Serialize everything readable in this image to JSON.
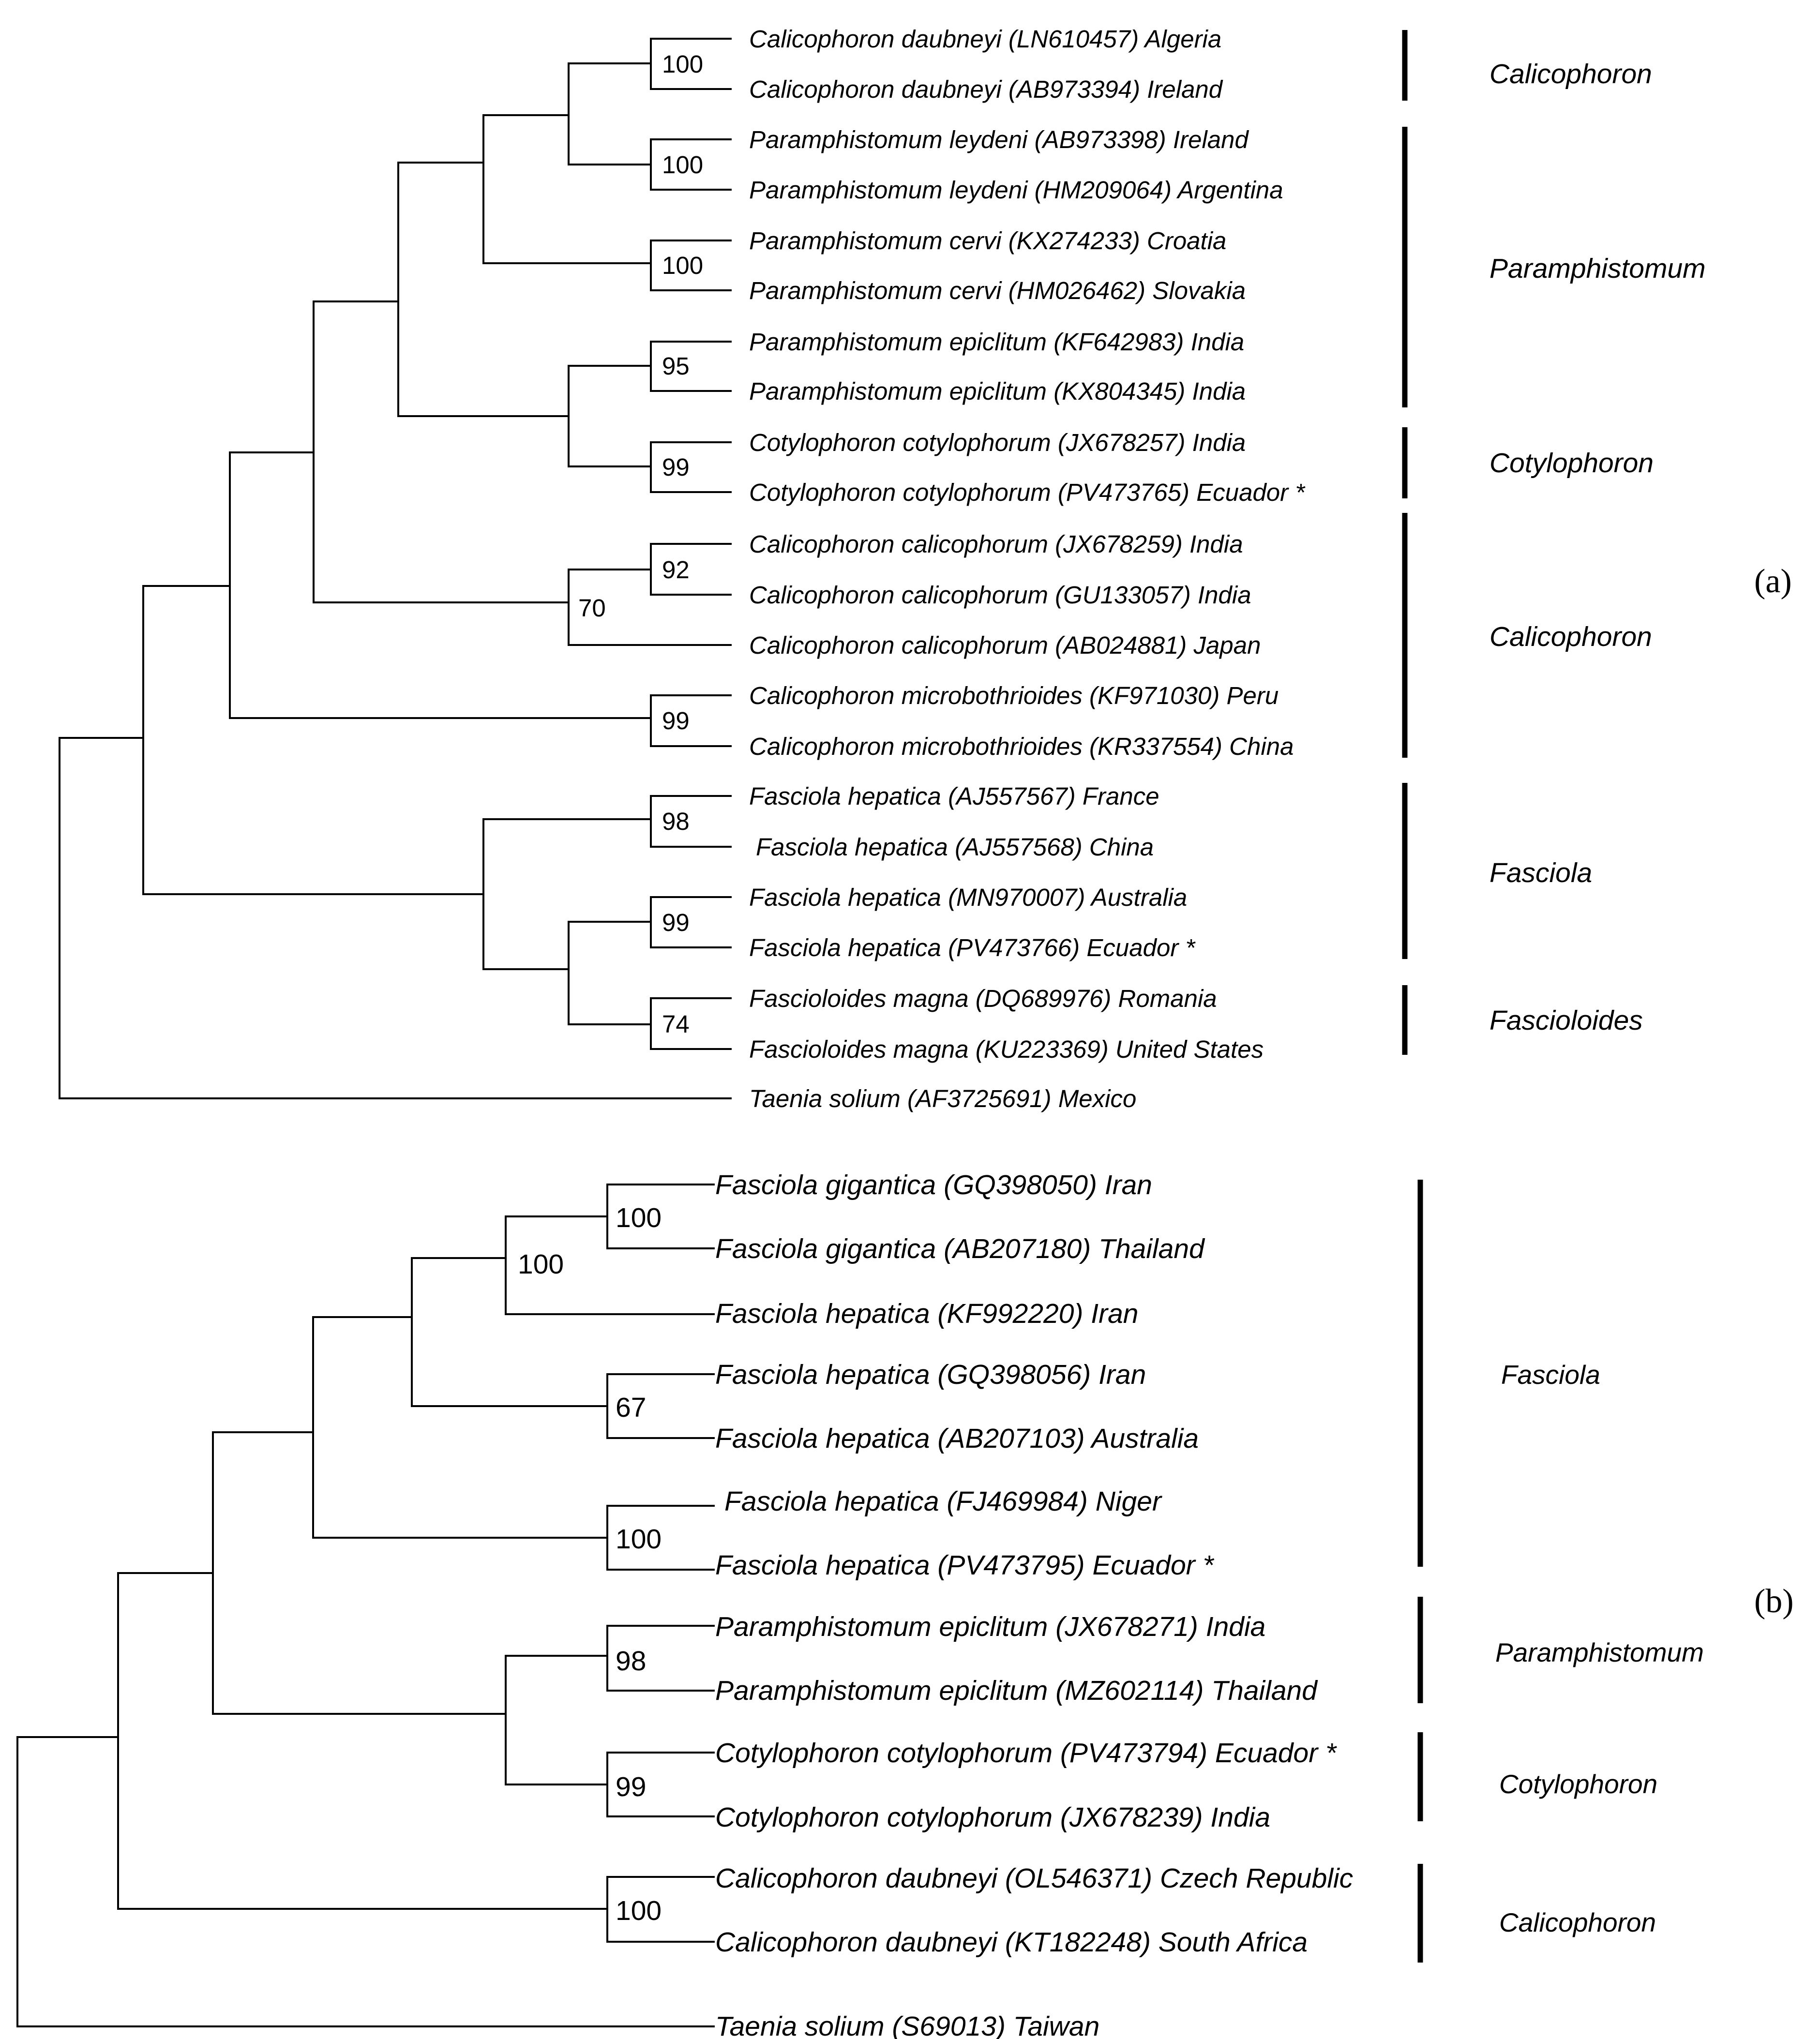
{
  "figure": {
    "panel_a": {
      "label": "(a)",
      "taxa": [
        "Calicophoron daubneyi (LN610457) Algeria",
        "Calicophoron daubneyi (AB973394) Ireland",
        "Paramphistomum leydeni (AB973398) Ireland",
        "Paramphistomum leydeni (HM209064) Argentina",
        "Paramphistomum cervi (KX274233) Croatia",
        "Paramphistomum cervi (HM026462) Slovakia",
        "Paramphistomum epiclitum (KF642983) India",
        "Paramphistomum epiclitum (KX804345) India",
        "Cotylophoron cotylophorum (JX678257) India",
        "Cotylophoron cotylophorum (PV473765) Ecuador *",
        "Calicophoron calicophorum (JX678259) India",
        "Calicophoron calicophorum (GU133057) India",
        "Calicophoron calicophorum (AB024881) Japan",
        "Calicophoron microbothrioides (KF971030) Peru",
        "Calicophoron microbothrioides (KR337554) China",
        "Fasciola hepatica (AJ557567) France",
        "Fasciola hepatica (AJ557568) China",
        "Fasciola hepatica (MN970007) Australia",
        "Fasciola hepatica (PV473766) Ecuador *",
        "Fascioloides magna (DQ689976) Romania",
        "Fascioloides magna (KU223369) United States",
        "Taenia solium (AF3725691) Mexico"
      ],
      "supports": [
        "100",
        "100",
        "100",
        "95",
        "99",
        "92",
        "70",
        "99",
        "98",
        "99",
        "74"
      ],
      "clades": [
        "Calicophoron",
        "Paramphistomum",
        "Cotylophoron",
        "Calicophoron",
        "Fasciola",
        "Fascioloides"
      ]
    },
    "panel_b": {
      "label": "(b)",
      "taxa": [
        "Fasciola gigantica (GQ398050) Iran",
        "Fasciola gigantica (AB207180) Thailand",
        "Fasciola hepatica (KF992220) Iran",
        "Fasciola hepatica (GQ398056) Iran",
        "Fasciola hepatica (AB207103) Australia",
        "Fasciola hepatica (FJ469984) Niger",
        "Fasciola hepatica (PV473795) Ecuador *",
        "Paramphistomum epiclitum (JX678271) India",
        "Paramphistomum epiclitum (MZ602114) Thailand",
        "Cotylophoron cotylophorum (PV473794) Ecuador *",
        "Cotylophoron cotylophorum (JX678239) India",
        "Calicophoron daubneyi (OL546371) Czech Republic",
        "Calicophoron daubneyi (KT182248) South Africa",
        "Taenia solium (S69013) Taiwan"
      ],
      "supports": [
        "100",
        "100",
        "67",
        "100",
        "98",
        "99",
        "100"
      ],
      "clades": [
        "Fasciola",
        "Paramphistomum",
        "Cotylophoron",
        "Calicophoron"
      ]
    }
  }
}
